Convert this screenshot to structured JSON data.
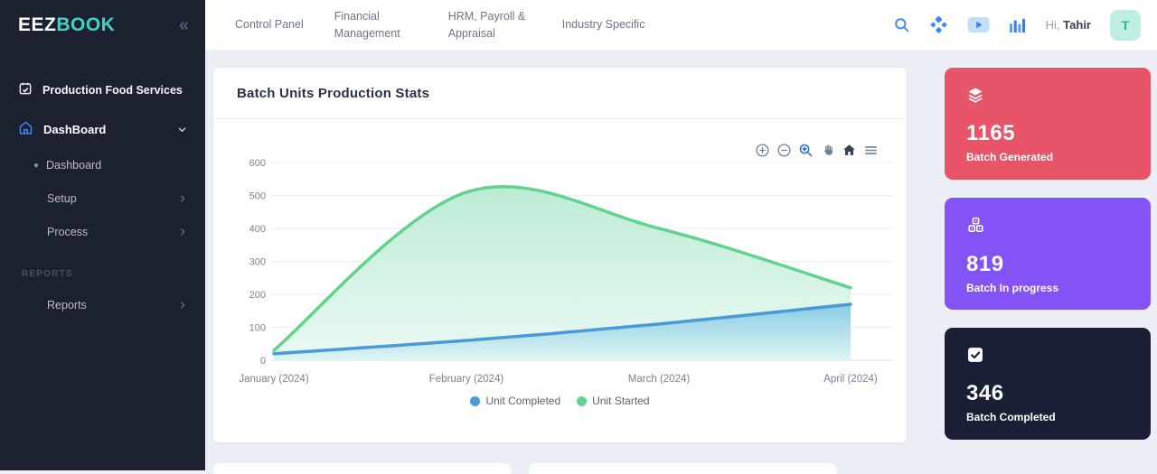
{
  "sidebar": {
    "logo_primary": "EEZ",
    "logo_accent": "BOOK",
    "logo_accent_color": "#41d3c8",
    "collapse_glyph": "«",
    "module_label": "Production Food Services",
    "dashboard_label": "DashBoard",
    "sub_dashboard": "Dashboard",
    "sub_setup": "Setup",
    "sub_process": "Process",
    "reports_section": "REPORTS",
    "reports_label": "Reports"
  },
  "topbar": {
    "nav": {
      "control_panel": "Control Panel",
      "financial": "Financial Management",
      "hrm": "HRM, Payroll & Appraisal",
      "industry": "Industry Specific"
    },
    "icons": [
      "search-icon",
      "apps-icon",
      "video-icon",
      "analytics-icon"
    ],
    "greeting_prefix": "Hi,",
    "greeting_name": "Tahir",
    "avatar_initial": "T"
  },
  "chart_card": {
    "title": "Batch Units Production Stats",
    "toolbar_icons": [
      "zoom-in-icon",
      "zoom-out-icon",
      "selection-zoom-icon",
      "pan-icon",
      "reset-home-icon",
      "menu-icon"
    ]
  },
  "chart_data": {
    "type": "area",
    "title": "Batch Units Production Stats",
    "categories": [
      "January (2024)",
      "February (2024)",
      "March (2024)",
      "April (2024)"
    ],
    "series": [
      {
        "name": "Unit Completed",
        "color": "#4a99d8",
        "fill_top": "#79c4e2",
        "fill_bottom": "#d9f2f3",
        "values": [
          20,
          60,
          110,
          170
        ]
      },
      {
        "name": "Unit Started",
        "color": "#64d28f",
        "fill_top": "#aee8cb",
        "fill_bottom": "#e4f8f0",
        "values": [
          30,
          510,
          400,
          220
        ]
      }
    ],
    "xlabel": "",
    "ylabel": "",
    "ylim": [
      0,
      600
    ],
    "yticks": [
      0,
      100,
      200,
      300,
      400,
      500,
      600
    ],
    "grid": true,
    "legend_position": "bottom"
  },
  "stats": [
    {
      "value": "1165",
      "label": "Batch Generated",
      "color": "#e85568",
      "icon": "layers-icon"
    },
    {
      "value": "819",
      "label": "Batch In progress",
      "color": "#8453f6",
      "icon": "boxes-icon"
    },
    {
      "value": "346",
      "label": "Batch Completed",
      "color": "#192036",
      "icon": "checkbox-icon"
    }
  ]
}
